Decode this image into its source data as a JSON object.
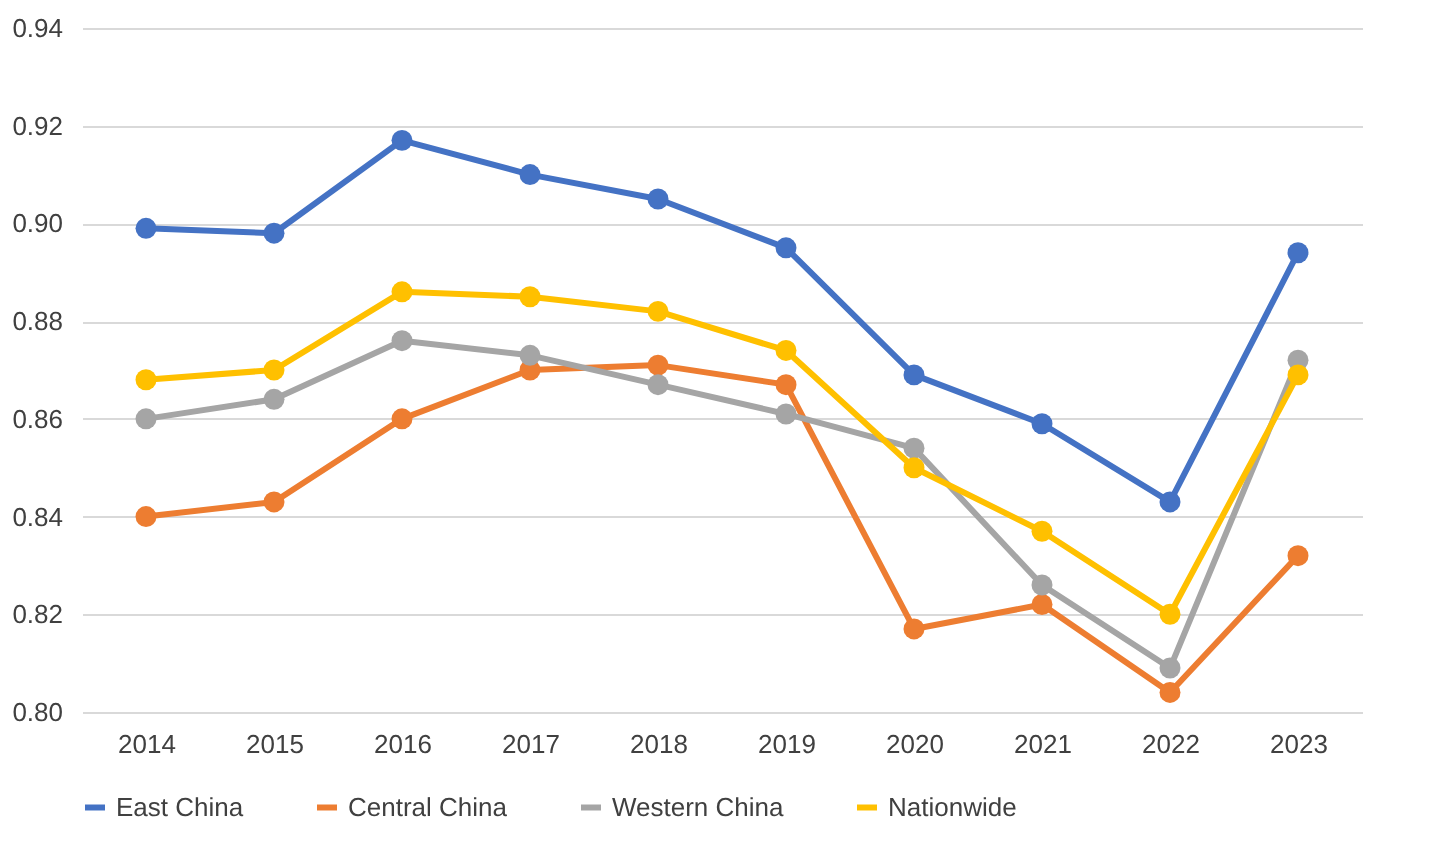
{
  "chart_data": {
    "type": "line",
    "categories": [
      "2014",
      "2015",
      "2016",
      "2017",
      "2018",
      "2019",
      "2020",
      "2021",
      "2022",
      "2023"
    ],
    "series": [
      {
        "name": "East China",
        "color": "#4472c4",
        "values": [
          0.899,
          0.898,
          0.917,
          0.91,
          0.905,
          0.895,
          0.869,
          0.859,
          0.843,
          0.894
        ]
      },
      {
        "name": "Central China",
        "color": "#ed7d31",
        "values": [
          0.84,
          0.843,
          0.86,
          0.87,
          0.871,
          0.867,
          0.817,
          0.822,
          0.804,
          0.832
        ]
      },
      {
        "name": "Western China",
        "color": "#a5a5a5",
        "values": [
          0.86,
          0.864,
          0.876,
          0.873,
          0.867,
          0.861,
          0.854,
          0.826,
          0.809,
          0.872
        ]
      },
      {
        "name": "Nationwide",
        "color": "#ffc000",
        "values": [
          0.868,
          0.87,
          0.886,
          0.885,
          0.882,
          0.874,
          0.85,
          0.837,
          0.82,
          0.869
        ]
      }
    ],
    "ylim": [
      0.8,
      0.94
    ],
    "yticks": [
      {
        "value": 0.8,
        "label": "0.80"
      },
      {
        "value": 0.82,
        "label": "0.82"
      },
      {
        "value": 0.84,
        "label": "0.84"
      },
      {
        "value": 0.86,
        "label": "0.86"
      },
      {
        "value": 0.88,
        "label": "0.88"
      },
      {
        "value": 0.9,
        "label": "0.90"
      },
      {
        "value": 0.92,
        "label": "0.92"
      },
      {
        "value": 0.94,
        "label": "0.94"
      }
    ],
    "grid": "y",
    "legend": "bottom",
    "marker": "circle",
    "line_style": "solid"
  }
}
